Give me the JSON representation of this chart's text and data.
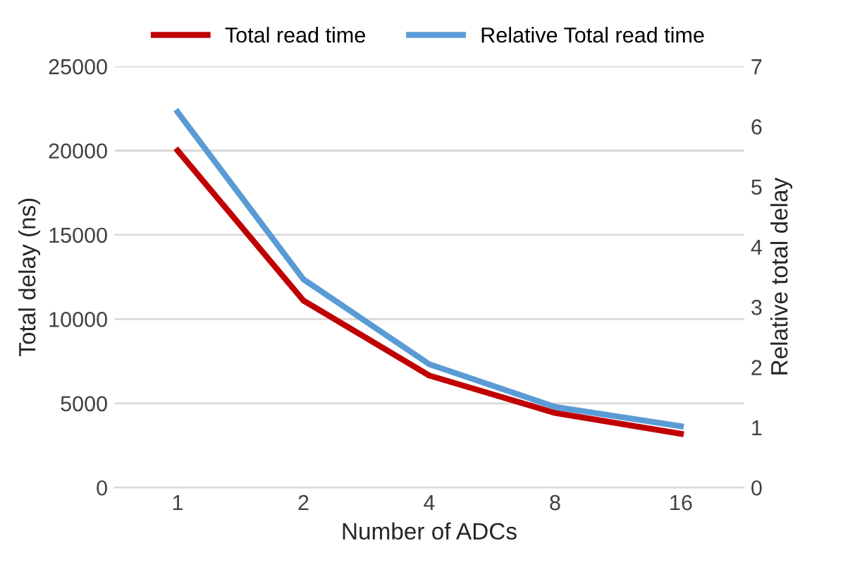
{
  "chart_data": {
    "type": "line",
    "xlabel": "Number of ADCs",
    "ylabel": "Total delay (ns)",
    "y2label": "Relative total delay",
    "categories": [
      "1",
      "2",
      "4",
      "8",
      "16"
    ],
    "series": [
      {
        "name": "Total read time",
        "color": "#c00000",
        "values": [
          20000,
          11100,
          6650,
          4430,
          3190
        ]
      },
      {
        "name": "Relative Total read time",
        "color": "#5b9bd5",
        "axis": "y2",
        "values": [
          6.24,
          3.46,
          2.05,
          1.34,
          1.02
        ]
      }
    ],
    "ylim": [
      0,
      25000
    ],
    "yticks": [
      0,
      5000,
      10000,
      15000,
      20000,
      25000
    ],
    "y2lim": [
      0,
      7
    ],
    "y2ticks": [
      0,
      1,
      2,
      3,
      4,
      5,
      6,
      7
    ],
    "grid": "y",
    "legend": "top",
    "marker": "none",
    "line_style": "solid"
  }
}
